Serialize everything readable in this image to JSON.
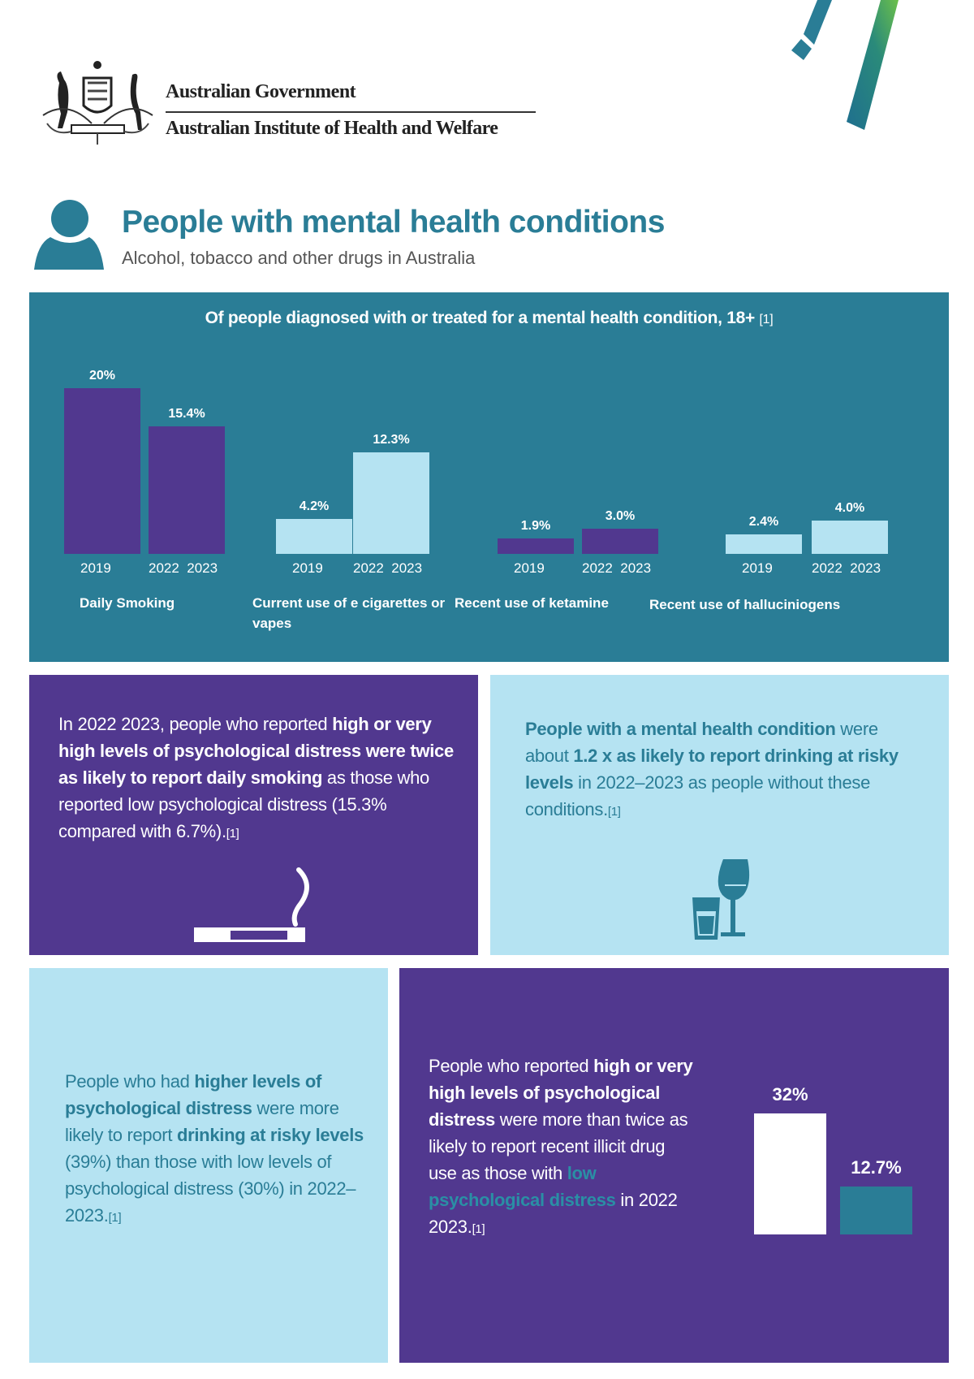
{
  "header": {
    "gov_label": "Australian Government",
    "agency_label": "Australian Institute of Health and Welfare",
    "crest_text": "Commonwealth Coat of Arms",
    "title": "People with mental health conditions",
    "subtitle": "Alcohol, tobacco and other drugs in Australia",
    "person_icon": "person-icon"
  },
  "colors": {
    "teal": "#2a7d96",
    "purple": "#51388f",
    "light_blue": "#b5e3f2",
    "white": "#ffffff"
  },
  "chart_data": [
    {
      "type": "bar",
      "title": "Of people diagnosed with or treated for a mental health condition, 18+",
      "title_ref": "[1]",
      "categories": [
        "2019",
        "2022  2023"
      ],
      "groups": [
        {
          "label": "Daily Smoking",
          "values": [
            20,
            15.4
          ],
          "labels": [
            "20%",
            "15.4%"
          ],
          "color": "#51388f"
        },
        {
          "label": "Current use of e cigarettes or vapes",
          "values": [
            4.2,
            12.3
          ],
          "labels": [
            "4.2%",
            "12.3%"
          ],
          "color": "#b5e3f2"
        },
        {
          "label": "Recent use of ketamine",
          "values": [
            1.9,
            3.0
          ],
          "labels": [
            "1.9%",
            "3.0%"
          ],
          "color": "#51388f"
        },
        {
          "label": "Recent use of halluciniogens",
          "values": [
            2.4,
            4.0
          ],
          "labels": [
            "2.4%",
            "4.0%"
          ],
          "color": "#b5e3f2"
        }
      ],
      "unit": "%"
    },
    {
      "type": "bar",
      "categories": [
        "high or very high psychological distress",
        "low psychological distress"
      ],
      "values": [
        32,
        12.7
      ],
      "labels": [
        "32%",
        "12.7%"
      ],
      "colors": [
        "#ffffff",
        "#2a7d96"
      ]
    }
  ],
  "boxes": {
    "smoking": {
      "segments": [
        {
          "t": "In 2022  2023, people who reported "
        },
        {
          "t": "high or very high levels of psychological distress were twice as likely to report daily smoking"
        },
        {
          "t": " as those who reported low psychological distress (15.3% compared with 6.7%)."
        },
        {
          "t": "[1]"
        }
      ],
      "icon": "cigarette-icon"
    },
    "drinking": {
      "segments": [
        {
          "t": "People with a mental health condition"
        },
        {
          "t": " were about "
        },
        {
          "t": "1.2 x as likely to report drinking at risky levels"
        },
        {
          "t": " in 2022–2023 as people without these conditions."
        },
        {
          "t": "[1]"
        }
      ],
      "icon": "glasses-icon"
    },
    "risky": {
      "segments": [
        {
          "t": "People who had "
        },
        {
          "t": "higher levels of psychological distress"
        },
        {
          "t": " were more likely to report "
        },
        {
          "t": "drinking at risky levels"
        },
        {
          "t": " (39%) than those with low levels of psychological distress (30%) in 2022–2023."
        },
        {
          "t": "[1]"
        }
      ]
    },
    "illicit": {
      "segments": [
        {
          "t": "People who reported "
        },
        {
          "t": "high or very high levels of psychological distress"
        },
        {
          "t": " were more than twice as likely to report recent illicit drug use as those with "
        },
        {
          "t": "low psychological distress"
        },
        {
          "t": " in 2022  2023."
        },
        {
          "t": "[1]"
        }
      ]
    }
  }
}
